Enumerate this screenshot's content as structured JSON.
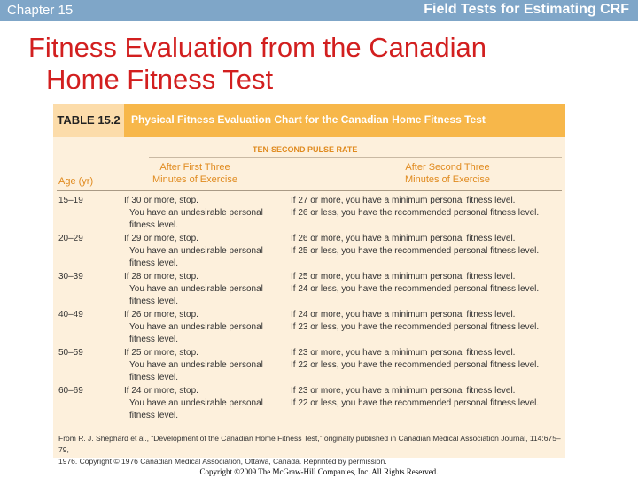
{
  "header": {
    "chapter": "Chapter 15",
    "section": "Field Tests for Estimating CRF"
  },
  "title": {
    "line1": "Fitness Evaluation from the Canadian",
    "line2": "Home Fitness Test"
  },
  "table": {
    "number": "TABLE 15.2",
    "caption": "Physical Fitness Evaluation Chart for the Canadian Home Fitness Test",
    "spanner": "TEN-SECOND PULSE RATE",
    "columns": {
      "age": "Age (yr)",
      "first_line1": "After First Three",
      "first_line2": "Minutes of Exercise",
      "second_line1": "After Second Three",
      "second_line2": "Minutes of Exercise"
    },
    "rows": [
      {
        "age": "15–19",
        "first_stop": "If 30 or more, stop.",
        "first_msg1": "You have an undesirable personal",
        "first_msg2": "fitness level.",
        "second_line1": "If 27 or more, you have a minimum personal fitness level.",
        "second_line2": "If 26 or less, you have the recommended personal fitness level."
      },
      {
        "age": "20–29",
        "first_stop": "If 29 or more, stop.",
        "first_msg1": "You have an undesirable personal",
        "first_msg2": "fitness level.",
        "second_line1": "If 26 or more, you have a minimum personal fitness level.",
        "second_line2": "If 25 or less, you have the recommended personal fitness level."
      },
      {
        "age": "30–39",
        "first_stop": "If 28 or more, stop.",
        "first_msg1": "You have an undesirable personal",
        "first_msg2": "fitness level.",
        "second_line1": "If 25 or more, you have a minimum personal fitness level.",
        "second_line2": "If 24 or less, you have the recommended personal fitness level."
      },
      {
        "age": "40–49",
        "first_stop": "If 26 or more, stop.",
        "first_msg1": "You have an undesirable personal",
        "first_msg2": "fitness level.",
        "second_line1": "If 24 or more, you have a minimum personal fitness level.",
        "second_line2": "If 23 or less, you have the recommended personal fitness level."
      },
      {
        "age": "50–59",
        "first_stop": "If 25 or more, stop.",
        "first_msg1": "You have an undesirable personal",
        "first_msg2": "fitness level.",
        "second_line1": "If 23 or more, you have a minimum personal fitness level.",
        "second_line2": "If 22 or less, you have the recommended personal fitness level."
      },
      {
        "age": "60–69",
        "first_stop": "If 24 or more, stop.",
        "first_msg1": "You have an undesirable personal",
        "first_msg2": "fitness level.",
        "second_line1": "If 23 or more, you have a minimum personal fitness level.",
        "second_line2": "If 22 or less, you have the recommended personal fitness level."
      }
    ],
    "source_line1": "From R. J. Shephard et al., “Development of the Canadian Home Fitness Test,” originally published in Canadian Medical Association Journal, 114:675–79,",
    "source_line2": "1976. Copyright © 1976 Canadian Medical Association, Ottawa, Canada. Reprinted by permission."
  },
  "footer": {
    "copyright": "Copyright ©2009 The McGraw-Hill Companies, Inc. All Rights Reserved."
  },
  "colors": {
    "title": "#d21f1f",
    "header_bar": "#7fa6c8",
    "table_bar": "#f7b74a",
    "table_bg": "#fdf0dc",
    "column_header": "#e08a1e"
  }
}
